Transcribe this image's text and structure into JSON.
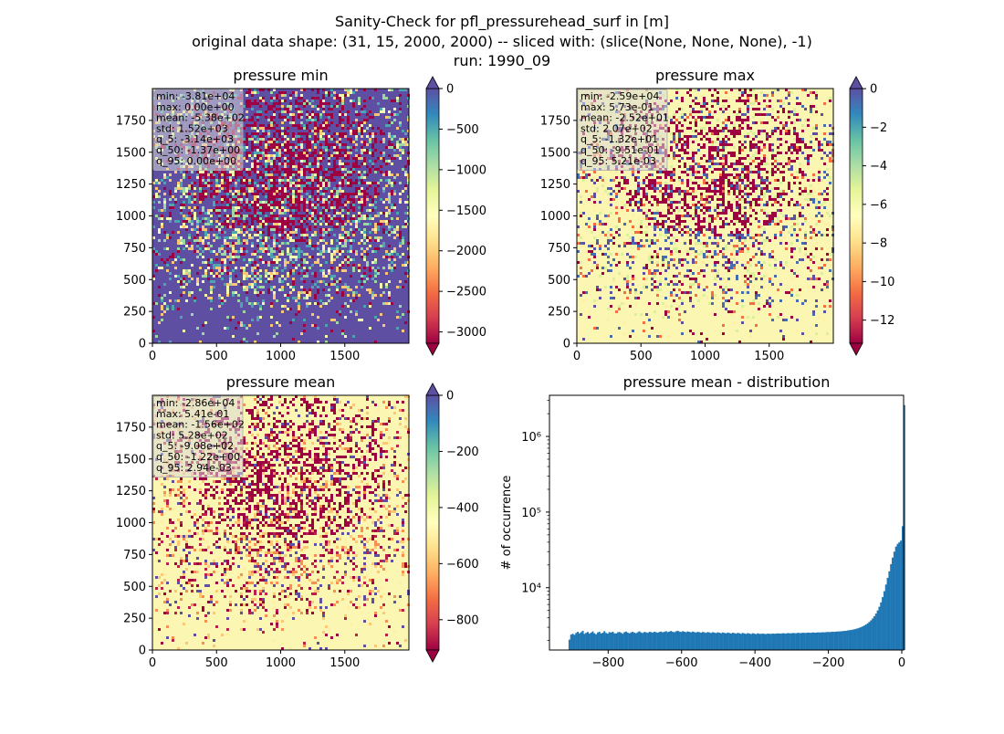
{
  "figure": {
    "suptitle": [
      "Sanity-Check for pfl_pressurehead_surf in [m]",
      "original data shape: (31, 15, 2000, 2000) -- sliced with: (slice(None, None, None), -1)",
      "run: 1990_09"
    ]
  },
  "chart_data": [
    {
      "type": "heatmap",
      "title": "pressure min",
      "xlim": [
        0,
        2000
      ],
      "ylim": [
        0,
        2000
      ],
      "xticks": [
        "0",
        "500",
        "1000",
        "1500"
      ],
      "yticks": [
        "0",
        "250",
        "500",
        "750",
        "1000",
        "1250",
        "1500",
        "1750"
      ],
      "colormap": "Spectral",
      "cmin": -3140,
      "cmax": 0,
      "colorbar_ticks": [
        "0",
        "−500",
        "−1000",
        "−1500",
        "−2000",
        "−2500",
        "−3000"
      ],
      "colorbar_tick_values": [
        0,
        -500,
        -1000,
        -1500,
        -2000,
        -2500,
        -3000
      ],
      "colorbar_extend": "both",
      "stats": [
        "min: -3.81e+04",
        "max: 0.00e+00",
        "mean: -5.38e+02",
        "std: 1.52e+03",
        "q_5: -3.14e+03",
        "q_50: -1.37e+00",
        "q_95: 0.00e+00"
      ],
      "background_color": "#5e4fa2"
    },
    {
      "type": "heatmap",
      "title": "pressure max",
      "xlim": [
        0,
        2000
      ],
      "ylim": [
        0,
        2000
      ],
      "xticks": [
        "0",
        "500",
        "1000",
        "1500"
      ],
      "yticks": [
        "0",
        "250",
        "500",
        "750",
        "1000",
        "1250",
        "1500",
        "1750"
      ],
      "colormap": "Spectral",
      "cmin": -13.2,
      "cmax": 0.005,
      "colorbar_ticks": [
        "0",
        "−2",
        "−4",
        "−6",
        "−8",
        "−10",
        "−12"
      ],
      "colorbar_tick_values": [
        0,
        -2,
        -4,
        -6,
        -8,
        -10,
        -12
      ],
      "colorbar_extend": "both",
      "stats": [
        "min: -2.59e+04",
        "max: 5.73e-01",
        "mean: -2.52e+01",
        "std: 2.07e+02",
        "q_5: -1.32e+01",
        "q_50: -9.51e-01",
        "q_95: 5.21e-03"
      ],
      "background_color": "#fbf6b2"
    },
    {
      "type": "heatmap",
      "title": "pressure mean",
      "xlim": [
        0,
        2000
      ],
      "ylim": [
        0,
        2000
      ],
      "xticks": [
        "0",
        "500",
        "1000",
        "1500"
      ],
      "yticks": [
        "0",
        "250",
        "500",
        "750",
        "1000",
        "1250",
        "1500",
        "1750"
      ],
      "colormap": "Spectral",
      "cmin": -908,
      "cmax": 0.003,
      "colorbar_ticks": [
        "0",
        "−200",
        "−400",
        "−600",
        "−800"
      ],
      "colorbar_tick_values": [
        0,
        -200,
        -400,
        -600,
        -800
      ],
      "colorbar_extend": "both",
      "stats": [
        "min: -2.86e+04",
        "max: 5.41e-01",
        "mean: -1.56e+02",
        "std: 5.28e+02",
        "q_5: -9.08e+02",
        "q_50: -1.22e+00",
        "q_95: 2.94e-03"
      ],
      "background_color": "#fbf6b2"
    },
    {
      "type": "bar",
      "title": "pressure mean - distribution",
      "ylabel": "# of occurrence",
      "xlabel": "",
      "yscale": "log",
      "xlim": [
        -960,
        5
      ],
      "ylim": [
        1500,
        3500000
      ],
      "xticks": [
        "−800",
        "−600",
        "−400",
        "−200",
        "0"
      ],
      "xtick_values": [
        -800,
        -600,
        -400,
        -200,
        0
      ],
      "yticks": [
        "10⁴",
        "10⁵",
        "10⁶"
      ],
      "ytick_values": [
        10000,
        100000,
        1000000
      ],
      "bar_color": "#1f77b4",
      "bin_width": 4.54,
      "bin_start": -908,
      "values": [
        2060,
        2400,
        2460,
        2380,
        2520,
        2610,
        2490,
        2580,
        2690,
        2450,
        2530,
        2600,
        2470,
        2550,
        2640,
        2500,
        2420,
        2560,
        2610,
        2480,
        2540,
        2660,
        2520,
        2470,
        2590,
        2550,
        2620,
        2500,
        2480,
        2570,
        2600,
        2530,
        2460,
        2580,
        2630,
        2550,
        2490,
        2570,
        2610,
        2540,
        2500,
        2580,
        2650,
        2560,
        2520,
        2600,
        2570,
        2530,
        2610,
        2590,
        2550,
        2620,
        2580,
        2540,
        2600,
        2630,
        2570,
        2610,
        2660,
        2590,
        2630,
        2680,
        2610,
        2580,
        2650,
        2700,
        2630,
        2600,
        2660,
        2620,
        2580,
        2640,
        2610,
        2570,
        2630,
        2590,
        2550,
        2610,
        2580,
        2540,
        2600,
        2570,
        2530,
        2590,
        2560,
        2520,
        2580,
        2550,
        2510,
        2570,
        2540,
        2500,
        2560,
        2530,
        2490,
        2550,
        2520,
        2480,
        2540,
        2510,
        2470,
        2530,
        2500,
        2460,
        2520,
        2490,
        2450,
        2510,
        2480,
        2440,
        2500,
        2470,
        2430,
        2490,
        2460,
        2450,
        2480,
        2450,
        2440,
        2470,
        2460,
        2450,
        2480,
        2460,
        2470,
        2490,
        2480,
        2470,
        2500,
        2490,
        2480,
        2510,
        2500,
        2490,
        2520,
        2510,
        2500,
        2530,
        2520,
        2510,
        2540,
        2530,
        2520,
        2550,
        2540,
        2530,
        2560,
        2550,
        2540,
        2570,
        2560,
        2560,
        2580,
        2570,
        2580,
        2600,
        2590,
        2600,
        2620,
        2610,
        2620,
        2640,
        2640,
        2650,
        2670,
        2680,
        2690,
        2720,
        2740,
        2760,
        2790,
        2820,
        2860,
        2900,
        2950,
        3010,
        3080,
        3160,
        3260,
        3380,
        3520,
        3700,
        3920,
        4200,
        4550,
        5000,
        5600,
        6400,
        7500,
        9000,
        11000,
        13500,
        16500,
        20500,
        25000,
        30000,
        35000,
        38000,
        40000,
        42000,
        65000,
        2600000
      ]
    }
  ]
}
